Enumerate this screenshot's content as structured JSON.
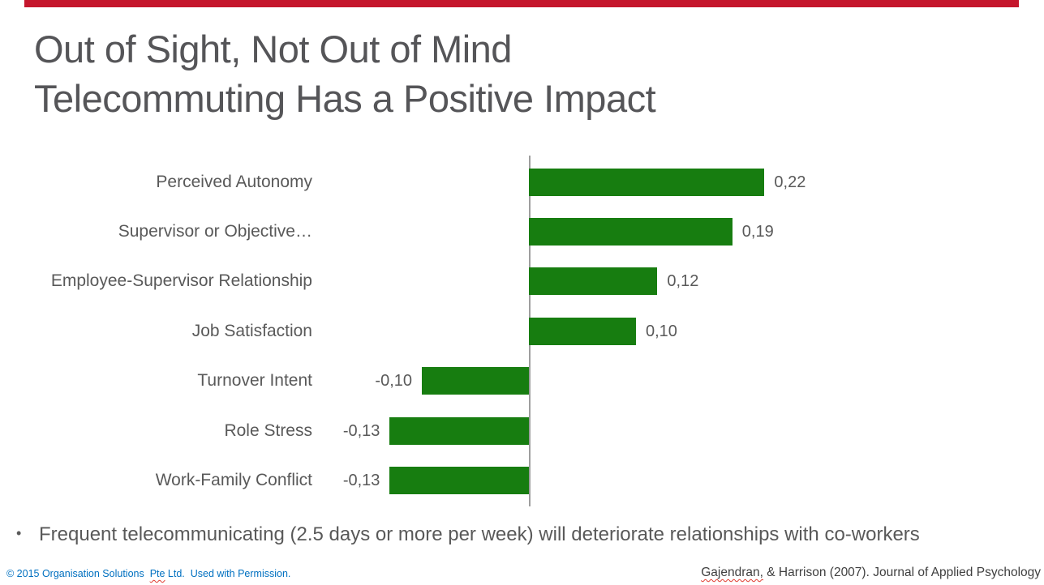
{
  "slide": {
    "accent_color": "#C5162C",
    "title_line1": "Out of Sight, Not Out of Mind",
    "title_line2": "Telecommuting Has a Positive Impact",
    "bullet": {
      "marker": "•",
      "text": "Frequent telecommunicating (2.5 days or more per week) will deteriorate relationships with co-workers"
    },
    "footer_left": {
      "prefix": "© 2015 Organisation Solutions  ",
      "misspelled_word": "Pte",
      "suffix": " Ltd.  Used with Permission.",
      "color": "#0070C0"
    },
    "footer_right": {
      "misspelled_word": "Gajendran,",
      "rest": " & Harrison (2007). Journal of Applied Psychology"
    }
  },
  "chart_data": {
    "type": "bar",
    "orientation": "horizontal",
    "categories": [
      "Perceived Autonomy",
      "Supervisor or Objective…",
      "Employee-Supervisor Relationship",
      "Job Satisfaction",
      "Turnover Intent",
      "Role Stress",
      "Work-Family Conflict"
    ],
    "values": [
      0.22,
      0.19,
      0.12,
      0.1,
      -0.1,
      -0.13,
      -0.13
    ],
    "value_labels": [
      "0,22",
      "0,19",
      "0,12",
      "0,10",
      "-0,10",
      "-0,13",
      "-0,13"
    ],
    "bar_color": "#177D10",
    "axis_color": "#9E9E9E",
    "label_color": "#595959",
    "xlim": [
      -0.2,
      0.48
    ],
    "grid": false,
    "legend": false,
    "title": ""
  }
}
